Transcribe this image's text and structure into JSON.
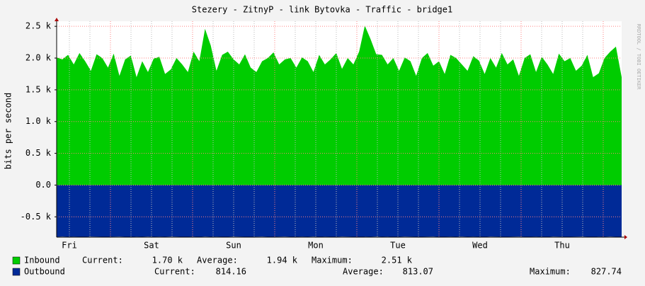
{
  "chart_data": {
    "type": "area",
    "title": "Stezery - ZitnyP - link Bytovka - Traffic - bridge1",
    "ylabel": "bits per second",
    "watermark": "RRDTOOL / TOBI OETIKER",
    "x_labels": [
      "Fri",
      "Sat",
      "Sun",
      "Mon",
      "Tue",
      "Wed",
      "Thu"
    ],
    "ylim": [
      -820,
      2580
    ],
    "yticks": [
      {
        "value": -500,
        "label": "-0.5 k"
      },
      {
        "value": 0,
        "label": "0.0"
      },
      {
        "value": 500,
        "label": "0.5 k"
      },
      {
        "value": 1000,
        "label": "1.0 k"
      },
      {
        "value": 1500,
        "label": "1.5 k"
      },
      {
        "value": 2000,
        "label": "2.0 k"
      },
      {
        "value": 2500,
        "label": "2.5 k"
      }
    ],
    "grid": true,
    "series": [
      {
        "name": "Inbound",
        "color": "#00cc00",
        "values": [
          2010,
          1980,
          2050,
          1900,
          2080,
          1950,
          1800,
          2060,
          2000,
          1850,
          2070,
          1720,
          1980,
          2040,
          1700,
          1950,
          1780,
          1990,
          2020,
          1750,
          1820,
          2000,
          1900,
          1780,
          2100,
          1950,
          2460,
          2200,
          1800,
          2050,
          2100,
          1980,
          1900,
          2060,
          1850,
          1780,
          1950,
          2000,
          2090,
          1900,
          1980,
          2000,
          1850,
          2010,
          1950,
          1780,
          2050,
          1900,
          1980,
          2080,
          1830,
          2000,
          1900,
          2100,
          2510,
          2300,
          2060,
          2050,
          1900,
          2000,
          1800,
          2010,
          1950,
          1720,
          2000,
          2080,
          1880,
          1950,
          1750,
          2050,
          2000,
          1900,
          1800,
          2030,
          1960,
          1750,
          2000,
          1850,
          2080,
          1900,
          1980,
          1720,
          2000,
          2060,
          1780,
          2020,
          1900,
          1750,
          2070,
          1950,
          2000,
          1800,
          1880,
          2050,
          1700,
          1760,
          2000,
          2100,
          2180,
          1700
        ],
        "stats": [
          "Current:",
          "1.70 k",
          "Average:",
          "1.94 k",
          "Maximum:",
          "2.51 k"
        ]
      },
      {
        "name": "Outbound",
        "color": "#002a97",
        "values": [
          -814,
          -812,
          -815,
          -813,
          -814,
          -816,
          -812,
          -813,
          -814,
          -815,
          -813,
          -812,
          -814,
          -816,
          -813,
          -814,
          -812,
          -815,
          -813,
          -814,
          -812,
          -813,
          -815,
          -814,
          -813,
          -816,
          -812,
          -814,
          -813,
          -815,
          -814,
          -812,
          -813,
          -814,
          -816,
          -813,
          -812,
          -815,
          -814,
          -813,
          -812,
          -814,
          -815,
          -813,
          -814,
          -812,
          -816,
          -813,
          -814,
          -815,
          -812,
          -813,
          -814,
          -828,
          -813,
          -815,
          -812,
          -814,
          -813,
          -816,
          -814,
          -812,
          -813,
          -815,
          -814,
          -813,
          -812,
          -816,
          -814,
          -813,
          -815,
          -812,
          -814,
          -813,
          -814,
          -816,
          -812,
          -813,
          -815,
          -814,
          -813,
          -812,
          -814,
          -815,
          -813,
          -814,
          -816,
          -812,
          -813,
          -814,
          -815,
          -813,
          -812,
          -814,
          -816,
          -813,
          -814,
          -812,
          -815,
          -814
        ],
        "stats": [
          "Current:",
          "814.16",
          "Average:",
          "813.07",
          "Maximum:",
          "827.74"
        ]
      }
    ]
  }
}
